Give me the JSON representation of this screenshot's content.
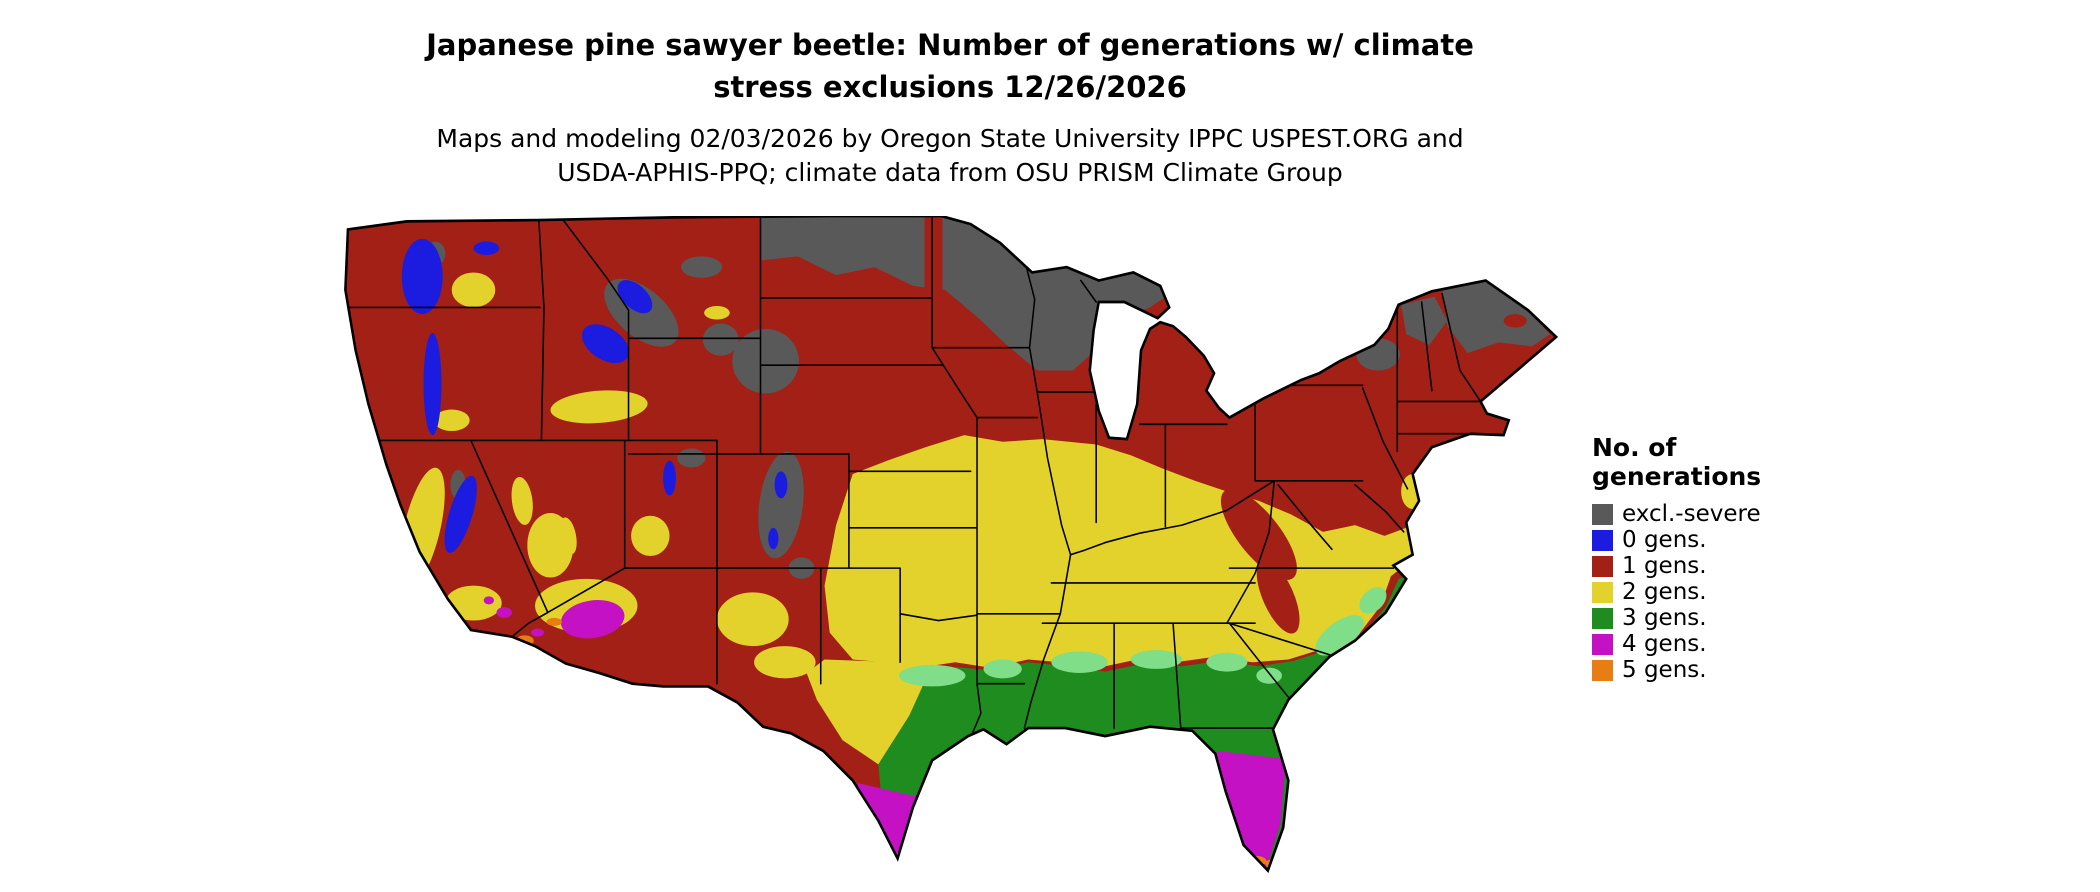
{
  "title": {
    "line1": "Japanese pine sawyer beetle: Number of generations w/ climate",
    "line2": "stress exclusions 12/26/2026"
  },
  "subtitle": {
    "line1": "Maps and modeling 02/03/2026 by Oregon State University IPPC USPEST.ORG and",
    "line2": "USDA-APHIS-PPQ; climate data from OSU PRISM Climate Group"
  },
  "legend": {
    "title_line1": "No. of",
    "title_line2": "generations",
    "items": [
      {
        "label": "excl.-severe",
        "color": "#595959",
        "key": "gray"
      },
      {
        "label": "0 gens.",
        "color": "#1c1ce0",
        "key": "blue"
      },
      {
        "label": "1 gens.",
        "color": "#a32016",
        "key": "red"
      },
      {
        "label": "2 gens.",
        "color": "#e2d22b",
        "key": "yellow"
      },
      {
        "label": "3 gens.",
        "color": "#1e8c1e",
        "key": "green"
      },
      {
        "label": "4 gens.",
        "color": "#c311c3",
        "key": "magenta"
      },
      {
        "label": "5 gens.",
        "color": "#e87d14",
        "key": "orange"
      }
    ]
  },
  "map": {
    "palette": {
      "gray": "#595959",
      "blue": "#1c1ce0",
      "red": "#a32016",
      "yellow": "#e2d22b",
      "green": "#1e8c1e",
      "lightgreen": "#7fde87",
      "magenta": "#c311c3",
      "orange": "#e87d14",
      "border": "#000000"
    }
  }
}
